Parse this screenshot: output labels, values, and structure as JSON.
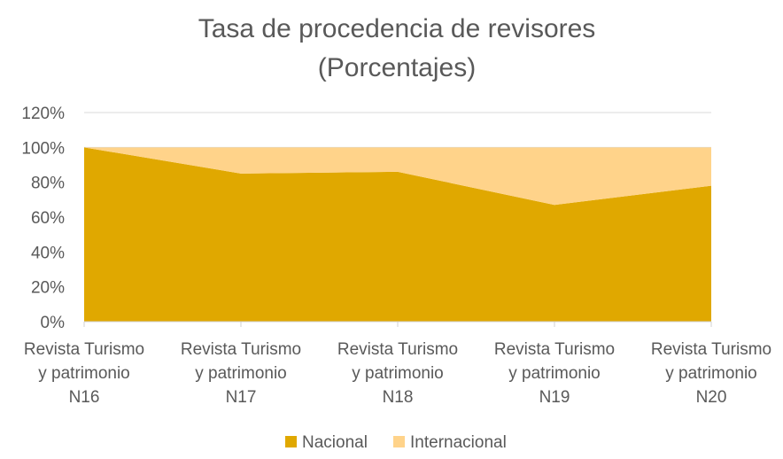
{
  "chart_data": {
    "type": "area",
    "stacked": true,
    "title": "Tasa de procedencia de revisores",
    "subtitle": "(Porcentajes)",
    "categories": [
      [
        "Revista Turismo",
        "y patrimonio",
        "N16"
      ],
      [
        "Revista Turismo",
        "y patrimonio",
        "N17"
      ],
      [
        "Revista Turismo",
        "y patrimonio",
        "N18"
      ],
      [
        "Revista Turismo",
        "y patrimonio",
        "N19"
      ],
      [
        "Revista Turismo",
        "y patrimonio",
        "N20"
      ]
    ],
    "series": [
      {
        "name": "Nacional",
        "values": [
          100,
          85,
          86,
          67,
          78
        ],
        "color": "#E0A800"
      },
      {
        "name": "Internacional",
        "values": [
          0,
          15,
          14,
          33,
          22
        ],
        "color": "#FFD38A"
      }
    ],
    "y_ticks": [
      "0%",
      "20%",
      "40%",
      "60%",
      "80%",
      "100%",
      "120%"
    ],
    "ylim": [
      0,
      120
    ],
    "y_unit": "%",
    "grid": true,
    "legend_position": "bottom"
  }
}
